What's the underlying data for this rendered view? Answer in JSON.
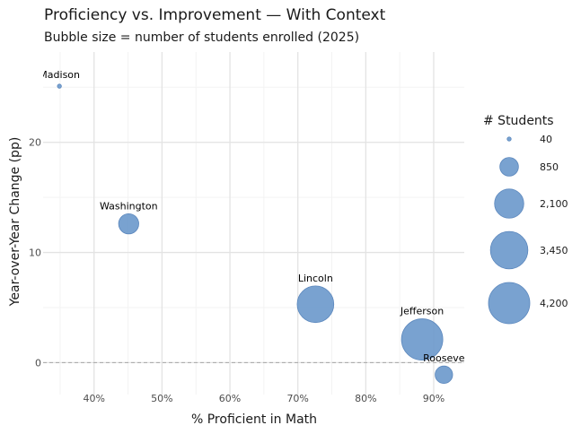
{
  "chart_data": {
    "type": "scatter",
    "title": "Proficiency vs. Improvement — With Context",
    "subtitle": "Bubble size = number of students enrolled (2025)",
    "xlabel": "% Proficient in Math",
    "ylabel": "Year-over-Year Change (pp)",
    "xlim": [
      32.5,
      94.5
    ],
    "ylim": [
      -2.9,
      28.2
    ],
    "x_ticks": [
      40,
      50,
      60,
      70,
      80,
      90
    ],
    "x_tick_labels": [
      "40%",
      "50%",
      "60%",
      "70%",
      "80%",
      "90%"
    ],
    "y_ticks": [
      0,
      10,
      20
    ],
    "y_tick_labels": [
      "0",
      "10",
      "20"
    ],
    "grid": true,
    "reference_line": {
      "y": 0,
      "style": "dashed"
    },
    "bubble_color": "#6a98cb",
    "points": [
      {
        "name": "Madison",
        "label": "Madison",
        "x": 34.9,
        "y": 25.1,
        "students": 40
      },
      {
        "name": "Washington",
        "label": "Washington",
        "x": 45.1,
        "y": 12.6,
        "students": 1000
      },
      {
        "name": "Lincoln",
        "label": "Lincoln",
        "x": 72.6,
        "y": 5.3,
        "students": 3300
      },
      {
        "name": "Jefferson",
        "label": "Jefferson",
        "x": 88.3,
        "y": 2.1,
        "students": 4200
      },
      {
        "name": "Roosevelt",
        "label": "Rooseve",
        "x": 91.5,
        "y": -1.1,
        "students": 750
      }
    ],
    "legend": {
      "title": "# Students",
      "placement": "right",
      "entries": [
        {
          "label": "40",
          "value": 40
        },
        {
          "label": "850",
          "value": 850
        },
        {
          "label": "2,100",
          "value": 2100
        },
        {
          "label": "3,450",
          "value": 3450
        },
        {
          "label": "4,200",
          "value": 4200
        }
      ]
    }
  }
}
